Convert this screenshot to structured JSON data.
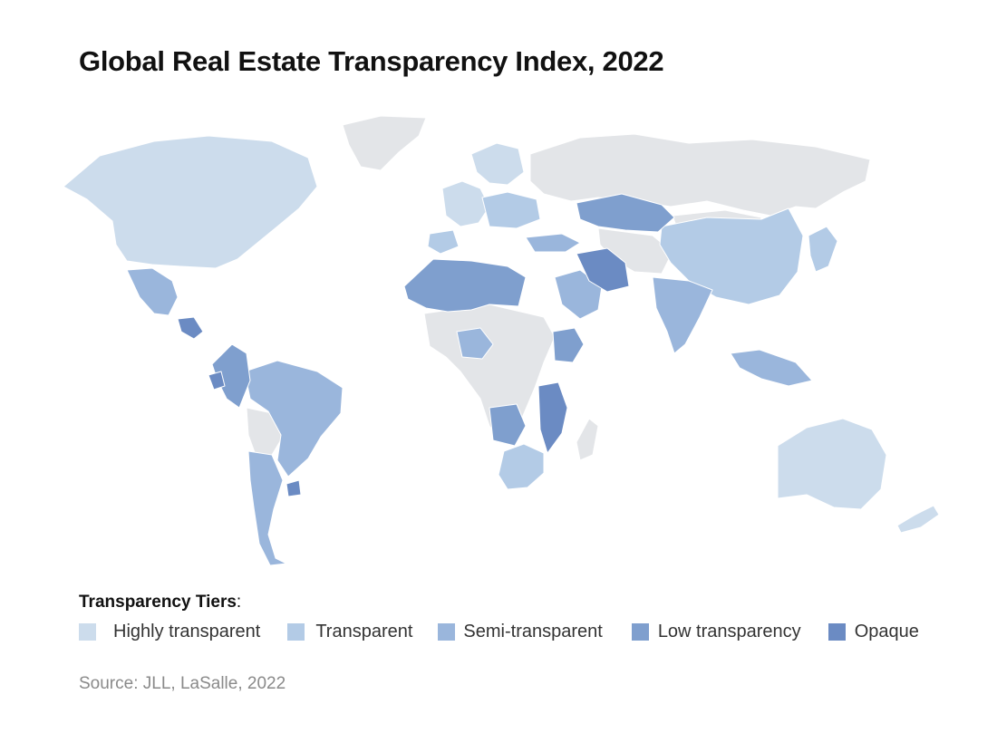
{
  "title": "Global Real Estate Transparency Index, 2022",
  "legend": {
    "heading": "Transparency Tiers",
    "heading_suffix": ":",
    "items": [
      {
        "label": "Highly transparent",
        "color": "#ccdcec"
      },
      {
        "label": "Transparent",
        "color": "#b3cbe6"
      },
      {
        "label": "Semi-transparent",
        "color": "#9ab6dc"
      },
      {
        "label": "Low transparency",
        "color": "#7f9fce"
      },
      {
        "label": "Opaque",
        "color": "#6b8bc3"
      }
    ]
  },
  "no_data_color": "#e3e5e8",
  "source": "Source: JLL, LaSalle, 2022"
}
